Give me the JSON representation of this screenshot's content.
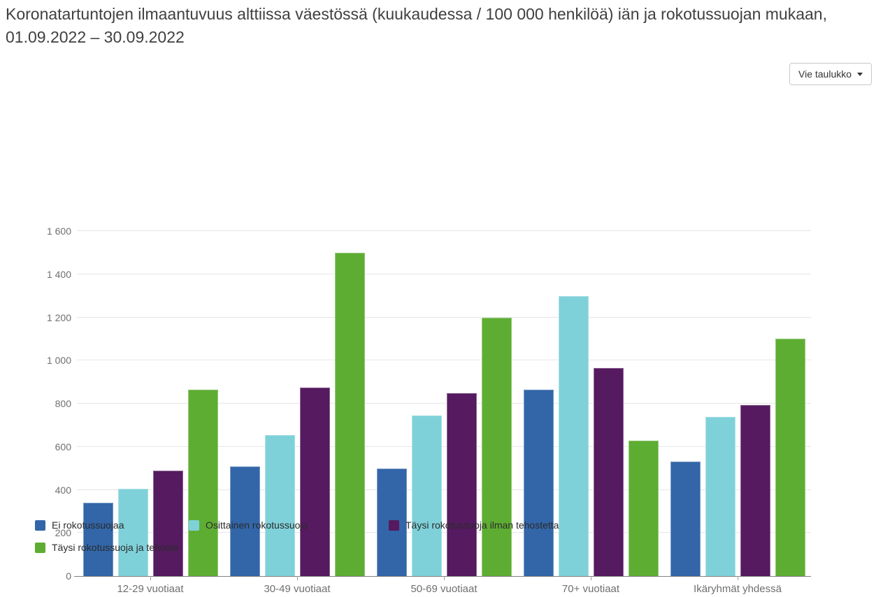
{
  "header": {
    "title": "Koronatartuntojen ilmaantuvuus alttiissa väestössä (kuukaudessa / 100 000 henkilöä) iän ja rokotussuojan mukaan, 01.09.2022 – 30.09.2022",
    "export_button_label": "Vie taulukko"
  },
  "chart_data": {
    "type": "bar",
    "title": "Koronatartuntojen ilmaantuvuus alttiissa väestössä (kuukaudessa / 100 000 henkilöä) iän ja rokotussuojan mukaan, 01.09.2022 – 30.09.2022",
    "categories": [
      "12-29 vuotiaat",
      "30-49 vuotiaat",
      "50-69 vuotiaat",
      "70+ vuotiaat",
      "Ikäryhmät yhdessä"
    ],
    "series": [
      {
        "name": "Ei rokotussuojaa",
        "color": "#3266a8",
        "values": [
          340,
          510,
          500,
          865,
          530
        ]
      },
      {
        "name": "Osittainen rokotussuoja",
        "color": "#7fd1d9",
        "values": [
          405,
          655,
          745,
          1300,
          740
        ]
      },
      {
        "name": "Täysi rokotussuoja ilman tehostetta",
        "color": "#551a5f",
        "values": [
          490,
          875,
          850,
          965,
          795
        ]
      },
      {
        "name": "Täysi rokotussuoja ja tehoste",
        "color": "#5ead33",
        "values": [
          865,
          1500,
          1200,
          630,
          1100
        ]
      }
    ],
    "xlabel": "",
    "ylabel": "",
    "ylim": [
      0,
      1600
    ],
    "ytick_step": 200,
    "yticklabels": [
      "0",
      "200",
      "400",
      "600",
      "800",
      "1 000",
      "1 200",
      "1 400",
      "1 600"
    ],
    "grid": true,
    "legend_position": "bottom-left"
  }
}
